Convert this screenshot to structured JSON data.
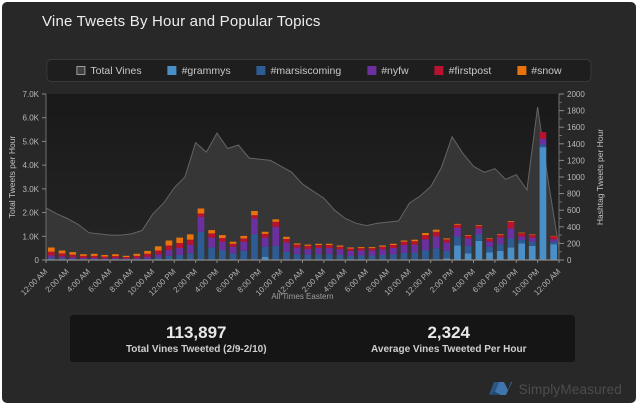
{
  "title": "Vine Tweets By Hour and Popular Topics",
  "legend": {
    "items": [
      {
        "label": "Total Vines",
        "color": "#3f3f3f",
        "swatch": "outline"
      },
      {
        "label": "#grammys",
        "color": "#4a90c8",
        "swatch": "solid"
      },
      {
        "label": "#marsiscoming",
        "color": "#2d5c94",
        "swatch": "solid"
      },
      {
        "label": "#nyfw",
        "color": "#6b2fa0",
        "swatch": "solid"
      },
      {
        "label": "#firstpost",
        "color": "#b8122e",
        "swatch": "solid"
      },
      {
        "label": "#snow",
        "color": "#e8720c",
        "swatch": "solid"
      }
    ]
  },
  "chart_data": {
    "type": "combo",
    "title": "Vine Tweets By Hour and Popular Topics",
    "x_note": "All Times Eastern",
    "x_tick_labels": [
      "12:00 AM",
      "2:00 AM",
      "4:00 AM",
      "6:00 AM",
      "8:00 AM",
      "10:00 AM",
      "12:00 PM",
      "2:00 PM",
      "4:00 PM",
      "6:00 PM",
      "8:00 PM",
      "10:00 PM",
      "12:00 AM",
      "2:00 AM",
      "4:00 AM",
      "6:00 AM",
      "8:00 AM",
      "10:00 AM",
      "12:00 PM",
      "2:00 PM",
      "4:00 PM",
      "6:00 PM",
      "8:00 PM",
      "10:00 PM",
      "12:00 AM"
    ],
    "left_axis": {
      "label": "Total Tweets per Hour",
      "ticks": [
        "7.0K",
        "6.0K",
        "5.0K",
        "4.0K",
        "3.0K",
        "2.0K",
        "1.0K",
        "0"
      ],
      "range": [
        0,
        7000
      ]
    },
    "right_axis": {
      "label": "Hashtag Tweets per Hour",
      "ticks": [
        "2000",
        "1800",
        "1600",
        "1400",
        "1200",
        "1000",
        "800",
        "600",
        "400",
        "200",
        "0"
      ],
      "range": [
        0,
        2000
      ]
    },
    "area_series": {
      "name": "Total Vines",
      "axis": "left",
      "fill": "#383838",
      "stroke": "#646464",
      "values": [
        2200,
        1950,
        1750,
        1500,
        1150,
        1100,
        1050,
        1050,
        1100,
        1250,
        1950,
        2400,
        3050,
        3500,
        4950,
        4550,
        5350,
        4700,
        4850,
        4300,
        4250,
        4200,
        3950,
        3700,
        3200,
        2900,
        2600,
        2100,
        1750,
        1550,
        1450,
        1550,
        1600,
        1650,
        2400,
        2700,
        3100,
        3900,
        5200,
        4500,
        3950,
        3700,
        3850,
        3400,
        3600,
        2950,
        6450,
        3300,
        500
      ]
    },
    "bar_series": [
      {
        "name": "#grammys",
        "axis": "right",
        "color": "#4a90c8",
        "values": [
          0,
          0,
          0,
          0,
          0,
          0,
          0,
          0,
          0,
          0,
          0,
          0,
          0,
          0,
          0,
          0,
          0,
          0,
          0,
          0,
          40,
          0,
          0,
          0,
          0,
          0,
          0,
          0,
          0,
          0,
          0,
          0,
          0,
          0,
          0,
          0,
          0,
          20,
          175,
          80,
          230,
          90,
          110,
          150,
          200,
          170,
          1360,
          190
        ]
      },
      {
        "name": "#marsiscoming",
        "axis": "right",
        "color": "#2d5c94",
        "values": [
          25,
          20,
          15,
          10,
          10,
          10,
          10,
          8,
          10,
          15,
          30,
          50,
          60,
          80,
          340,
          150,
          120,
          80,
          110,
          310,
          120,
          170,
          100,
          70,
          65,
          70,
          70,
          60,
          50,
          55,
          55,
          60,
          70,
          85,
          90,
          120,
          140,
          90,
          110,
          90,
          80,
          70,
          80,
          110,
          40,
          50,
          30,
          30
        ]
      },
      {
        "name": "#nyfw",
        "axis": "right",
        "color": "#6b2fa0",
        "values": [
          30,
          25,
          20,
          15,
          15,
          12,
          15,
          10,
          15,
          25,
          40,
          70,
          85,
          105,
          180,
          120,
          100,
          80,
          110,
          190,
          110,
          230,
          110,
          80,
          70,
          75,
          75,
          70,
          60,
          60,
          60,
          70,
          75,
          95,
          95,
          130,
          145,
          100,
          100,
          90,
          70,
          65,
          80,
          120,
          45,
          50,
          70,
          30
        ]
      },
      {
        "name": "#firstpost",
        "axis": "right",
        "color": "#b8122e",
        "values": [
          45,
          35,
          30,
          25,
          25,
          20,
          22,
          17,
          25,
          35,
          45,
          55,
          60,
          60,
          40,
          50,
          45,
          35,
          40,
          40,
          45,
          60,
          45,
          35,
          35,
          35,
          35,
          30,
          28,
          28,
          28,
          30,
          35,
          40,
          42,
          50,
          55,
          38,
          40,
          32,
          32,
          28,
          32,
          80,
          38,
          34,
          80,
          35
        ]
      },
      {
        "name": "#snow",
        "axis": "right",
        "color": "#e8720c",
        "values": [
          50,
          35,
          30,
          20,
          25,
          18,
          23,
          15,
          25,
          35,
          50,
          60,
          65,
          65,
          60,
          40,
          35,
          25,
          30,
          50,
          25,
          30,
          25,
          15,
          15,
          15,
          15,
          15,
          12,
          12,
          12,
          15,
          15,
          15,
          18,
          25,
          25,
          12,
          10,
          8,
          8,
          7,
          8,
          10,
          7,
          6,
          0,
          5
        ]
      }
    ]
  },
  "stats": {
    "total": {
      "value": "113,897",
      "label": "Total Vines Tweeted (2/9-2/10)"
    },
    "average": {
      "value": "2,324",
      "label": "Average Vines Tweeted Per Hour"
    }
  },
  "footer": {
    "brand": "SimplyMeasured"
  }
}
